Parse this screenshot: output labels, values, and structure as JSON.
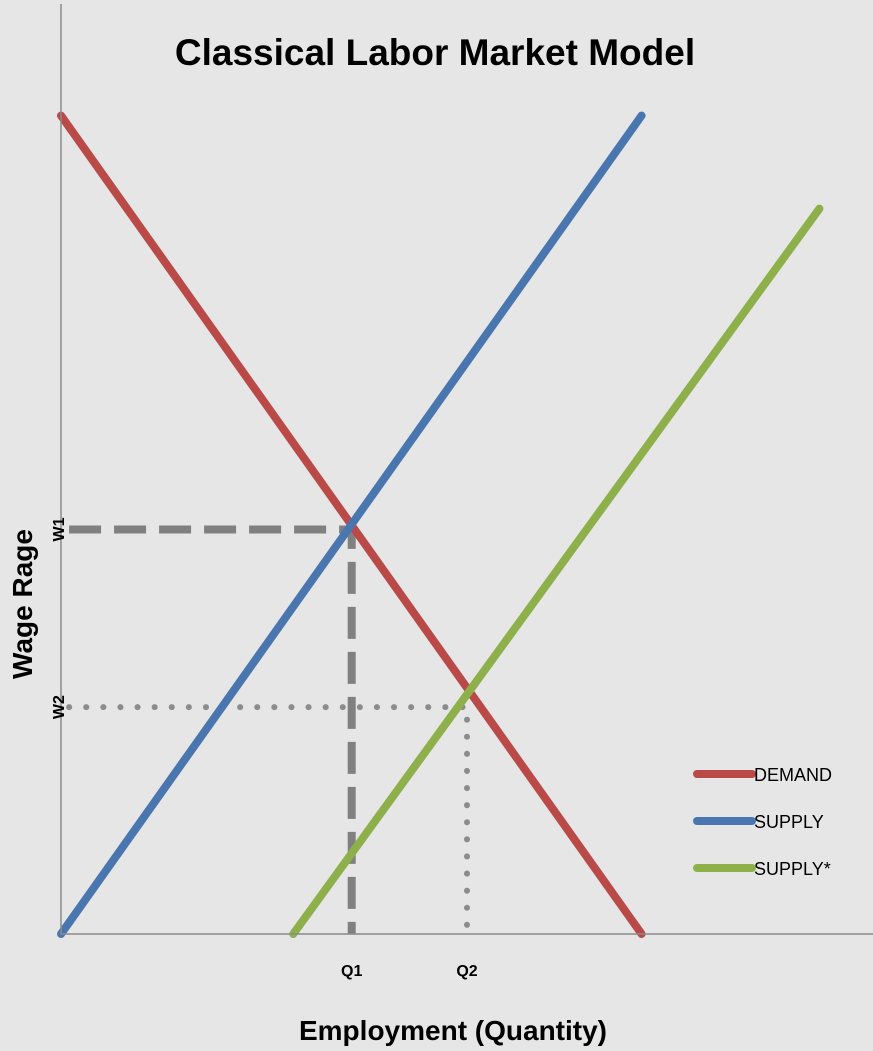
{
  "chart_data": {
    "type": "line",
    "title": "Classical Labor Market Model",
    "xlabel": "Employment (Quantity)",
    "ylabel": "Wage Rage",
    "xlim": [
      0,
      100
    ],
    "ylim": [
      0,
      100
    ],
    "grid": false,
    "legend_position": "bottom-right",
    "series": [
      {
        "name": "DEMAND",
        "color": "#b94a48",
        "points": [
          [
            0,
            88
          ],
          [
            71.5,
            0
          ]
        ]
      },
      {
        "name": "SUPPLY",
        "color": "#4a76b0",
        "points": [
          [
            0,
            0
          ],
          [
            71.5,
            88
          ]
        ]
      },
      {
        "name": "SUPPLY*",
        "color": "#8db04a",
        "points": [
          [
            28.6,
            0
          ],
          [
            93.4,
            78
          ]
        ]
      }
    ],
    "reference_lines": [
      {
        "style": "dashed",
        "color": "#808080",
        "points": [
          [
            1,
            43.5
          ],
          [
            35.8,
            43.5
          ],
          [
            35.8,
            0
          ]
        ]
      },
      {
        "style": "dotted",
        "color": "#8c8c8c",
        "points": [
          [
            1,
            24.4
          ],
          [
            50,
            24.4
          ],
          [
            50,
            0
          ]
        ]
      }
    ],
    "x_ticks": [
      {
        "label": "Q1",
        "value": 35.8
      },
      {
        "label": "Q2",
        "value": 50
      }
    ],
    "y_ticks": [
      {
        "label": "W1",
        "value": 43.5
      },
      {
        "label": "W2",
        "value": 24.4
      }
    ]
  }
}
